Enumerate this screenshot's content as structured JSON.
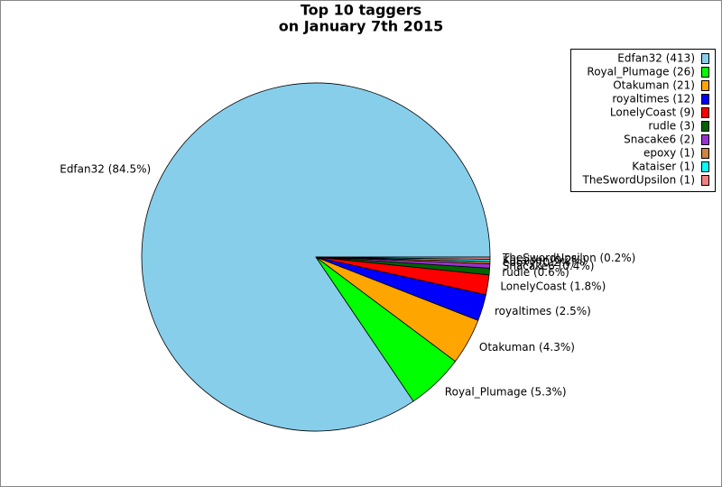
{
  "chart_data": {
    "type": "pie",
    "title_lines": [
      "Top 10 taggers",
      "on January 7th 2015"
    ],
    "values": [
      413,
      26,
      21,
      12,
      9,
      3,
      2,
      1,
      1,
      1
    ],
    "legend_labels": [
      "Edfan32 (413)",
      "Royal_Plumage (26)",
      "Otakuman (21)",
      "royaltimes (12)",
      "LonelyCoast (9)",
      "rudle (3)",
      "Snacake6 (2)",
      "epoxy (1)",
      "Kataiser (1)",
      "TheSwordUpsilon (1)"
    ],
    "slice_labels": [
      "Edfan32 (84.5%)",
      "Royal_Plumage (5.3%)",
      "Otakuman (4.3%)",
      "royaltimes (2.5%)",
      "LonelyCoast (1.8%)",
      "rudle (0.6%)",
      "Snacake6 (0.4%)",
      "epoxy (0.2%)",
      "Kataiser (0.2%)",
      "TheSwordUpsilon (0.2%)"
    ],
    "colors": [
      "#87ceeb",
      "#00ff00",
      "#ffa500",
      "#0000ff",
      "#ff0000",
      "#006400",
      "#9932cc",
      "#cd853f",
      "#00ffff",
      "#f08080"
    ],
    "legend": "top-right"
  }
}
